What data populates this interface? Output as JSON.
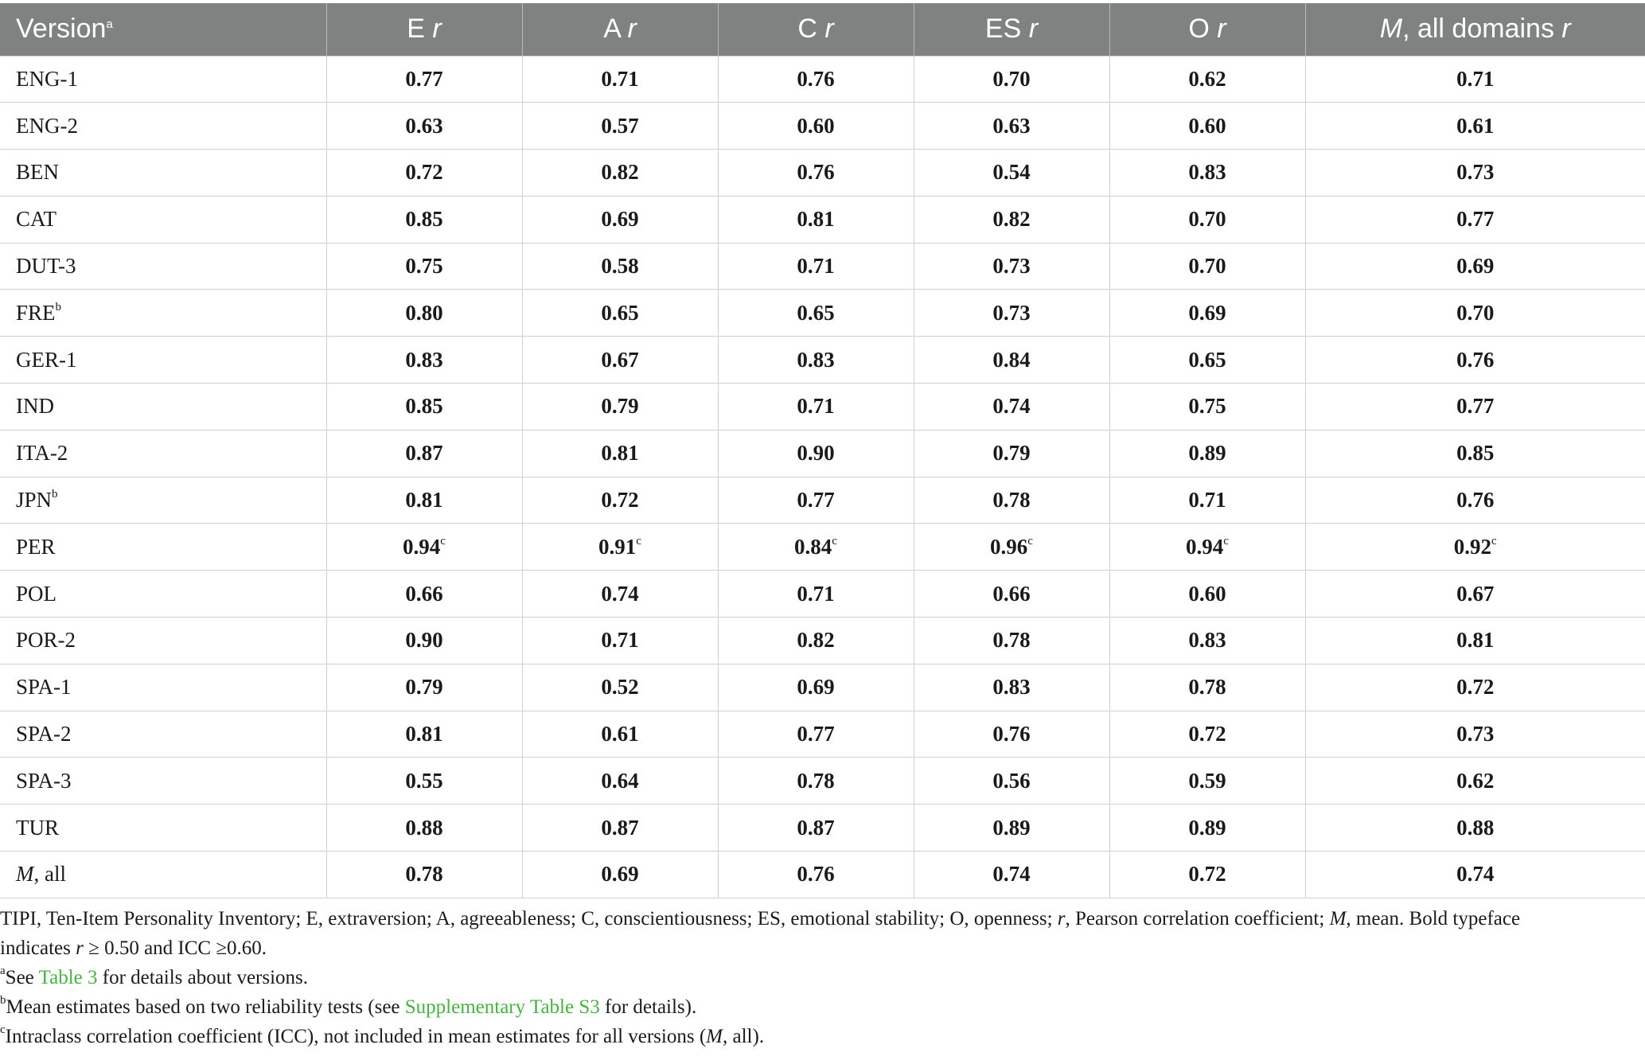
{
  "table": {
    "header": {
      "version": "Version",
      "version_sup": "a",
      "e": "E",
      "a": "A",
      "c": "C",
      "es": "ES",
      "o": "O",
      "mean_italic": "M",
      "mean_rest": ", all domains",
      "r": "r"
    },
    "rows": [
      {
        "version": "ENG-1",
        "version_sup": "",
        "values": [
          "0.77",
          "0.71",
          "0.76",
          "0.70",
          "0.62",
          "0.71"
        ],
        "icc": false
      },
      {
        "version": "ENG-2",
        "version_sup": "",
        "values": [
          "0.63",
          "0.57",
          "0.60",
          "0.63",
          "0.60",
          "0.61"
        ],
        "icc": false
      },
      {
        "version": "BEN",
        "version_sup": "",
        "values": [
          "0.72",
          "0.82",
          "0.76",
          "0.54",
          "0.83",
          "0.73"
        ],
        "icc": false
      },
      {
        "version": "CAT",
        "version_sup": "",
        "values": [
          "0.85",
          "0.69",
          "0.81",
          "0.82",
          "0.70",
          "0.77"
        ],
        "icc": false
      },
      {
        "version": "DUT-3",
        "version_sup": "",
        "values": [
          "0.75",
          "0.58",
          "0.71",
          "0.73",
          "0.70",
          "0.69"
        ],
        "icc": false
      },
      {
        "version": "FRE",
        "version_sup": "b",
        "values": [
          "0.80",
          "0.65",
          "0.65",
          "0.73",
          "0.69",
          "0.70"
        ],
        "icc": false
      },
      {
        "version": "GER-1",
        "version_sup": "",
        "values": [
          "0.83",
          "0.67",
          "0.83",
          "0.84",
          "0.65",
          "0.76"
        ],
        "icc": false
      },
      {
        "version": "IND",
        "version_sup": "",
        "values": [
          "0.85",
          "0.79",
          "0.71",
          "0.74",
          "0.75",
          "0.77"
        ],
        "icc": false
      },
      {
        "version": "ITA-2",
        "version_sup": "",
        "values": [
          "0.87",
          "0.81",
          "0.90",
          "0.79",
          "0.89",
          "0.85"
        ],
        "icc": false
      },
      {
        "version": "JPN",
        "version_sup": "b",
        "values": [
          "0.81",
          "0.72",
          "0.77",
          "0.78",
          "0.71",
          "0.76"
        ],
        "icc": false
      },
      {
        "version": "PER",
        "version_sup": "",
        "values": [
          "0.94",
          "0.91",
          "0.84",
          "0.96",
          "0.94",
          "0.92"
        ],
        "icc": true,
        "icc_sup": "c"
      },
      {
        "version": "POL",
        "version_sup": "",
        "values": [
          "0.66",
          "0.74",
          "0.71",
          "0.66",
          "0.60",
          "0.67"
        ],
        "icc": false
      },
      {
        "version": "POR-2",
        "version_sup": "",
        "values": [
          "0.90",
          "0.71",
          "0.82",
          "0.78",
          "0.83",
          "0.81"
        ],
        "icc": false
      },
      {
        "version": "SPA-1",
        "version_sup": "",
        "values": [
          "0.79",
          "0.52",
          "0.69",
          "0.83",
          "0.78",
          "0.72"
        ],
        "icc": false
      },
      {
        "version": "SPA-2",
        "version_sup": "",
        "values": [
          "0.81",
          "0.61",
          "0.77",
          "0.76",
          "0.72",
          "0.73"
        ],
        "icc": false
      },
      {
        "version": "SPA-3",
        "version_sup": "",
        "values": [
          "0.55",
          "0.64",
          "0.78",
          "0.56",
          "0.59",
          "0.62"
        ],
        "icc": false
      },
      {
        "version": "TUR",
        "version_sup": "",
        "values": [
          "0.88",
          "0.87",
          "0.87",
          "0.89",
          "0.89",
          "0.88"
        ],
        "icc": false
      }
    ],
    "mean_row": {
      "label_italic": "M",
      "label_rest": ", all",
      "values": [
        "0.78",
        "0.69",
        "0.76",
        "0.74",
        "0.72",
        "0.74"
      ]
    }
  },
  "notes": {
    "line1_a": "TIPI, Ten-Item Personality Inventory; E, extraversion; A, agreeableness; C, conscientiousness; ES, emotional stability; O, openness; ",
    "line1_r": "r",
    "line1_b": ", Pearson correlation coefficient; ",
    "line1_m": "M",
    "line1_c": ", mean. Bold typeface",
    "line2_a": "indicates ",
    "line2_r": "r",
    "line2_b": " ≥ 0.50 and ICC ≥0.60.",
    "a_sup": "a",
    "a_pre": "See ",
    "a_link": "Table 3",
    "a_post": " for details about versions.",
    "b_sup": "b",
    "b_pre": "Mean estimates based on two reliability tests (see ",
    "b_link": "Supplementary Table S3",
    "b_post": " for details).",
    "c_sup": "c",
    "c_pre": "Intraclass correlation coefficient (ICC), not included in mean estimates for all versions (",
    "c_m": "M",
    "c_post": ", all)."
  },
  "colors": {
    "header_bg": "#7f8280",
    "link": "#47b33e",
    "grid": "#cfd1d0"
  }
}
